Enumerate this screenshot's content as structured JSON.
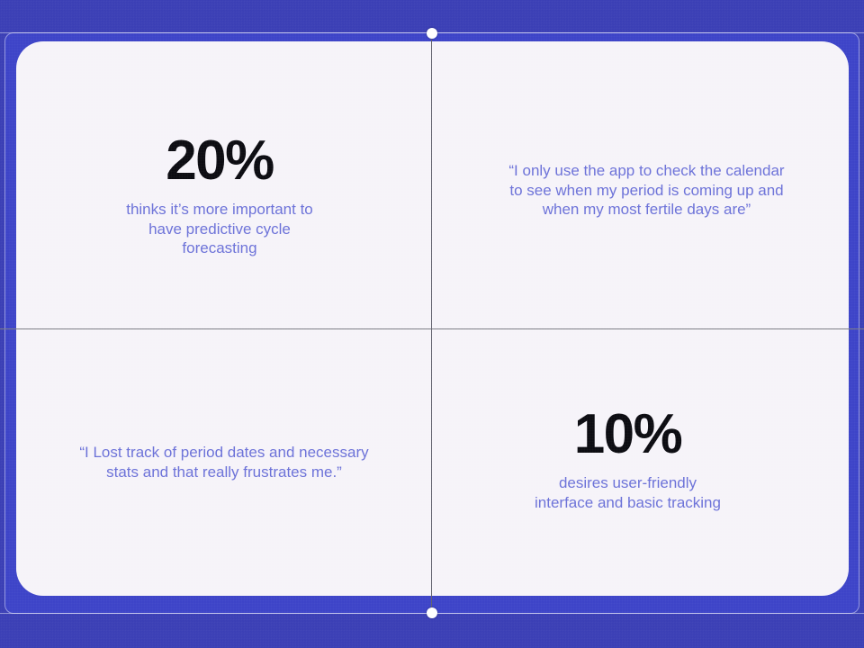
{
  "slide": {
    "background_color": "#3A3EB5",
    "frame_color": "#3C43C8",
    "card_color": "#F6F3F9",
    "accent_text_color": "#6B71D8",
    "stat_text_color": "#0A0A10",
    "horizontal_divider_color": "#7d7d85",
    "vertical_divider_color": "#62626e"
  },
  "quadrants": {
    "top_left": {
      "stat": "20%",
      "caption": "thinks it’s more important to\nhave predictive cycle\nforecasting"
    },
    "top_right": {
      "quote": "“I only use the app to check the calendar\nto see when my period is coming up and\nwhen my most fertile days are”"
    },
    "bottom_left": {
      "quote": "“I Lost track of period dates and necessary\nstats and that really frustrates me.”"
    },
    "bottom_right": {
      "stat": "10%",
      "caption": "desires user-friendly\ninterface and basic tracking"
    }
  }
}
